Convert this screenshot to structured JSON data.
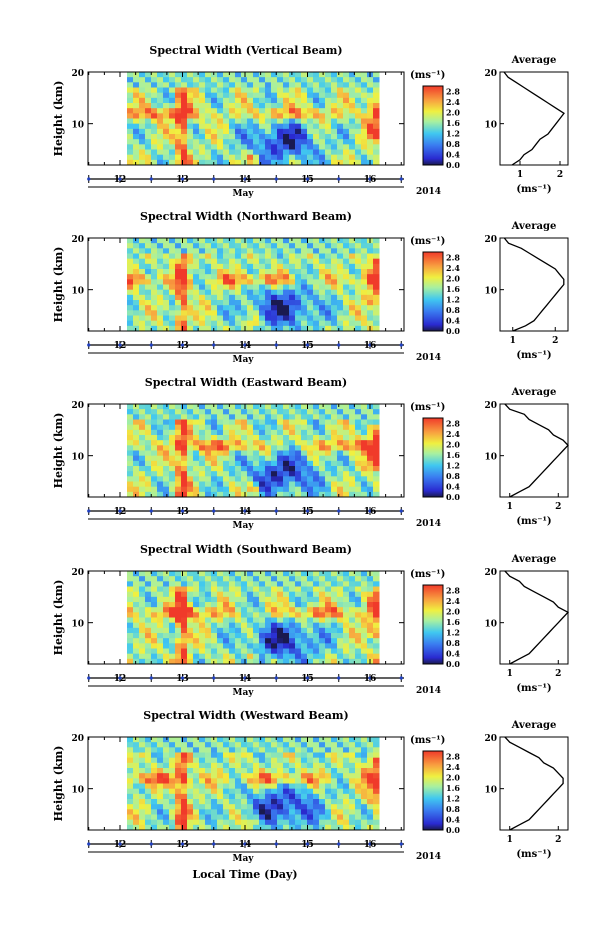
{
  "figure": {
    "xlabel": "Local Time (Day)",
    "month_label": "May",
    "year_label": "2014",
    "colorbar_unit": "(ms⁻¹)",
    "avg_title": "Average",
    "avg_xlabel": "(ms⁻¹)"
  },
  "chart_data": [
    {
      "type": "heatmap",
      "title": "Spectral Width (Vertical Beam)",
      "ylabel": "Height (km)",
      "x_ticks": [
        "12",
        "13",
        "14",
        "15",
        "16"
      ],
      "y_ticks": [
        "10",
        "20"
      ],
      "ylim": [
        2,
        20
      ],
      "colorbar_ticks": [
        "0.0",
        "0.4",
        "0.8",
        "1.2",
        "1.6",
        "2.0",
        "2.4",
        "2.8"
      ],
      "colorbar_range": [
        0,
        3.0
      ],
      "average": {
        "x_ticks": [
          "1",
          "2"
        ],
        "xlim": [
          0.5,
          2.2
        ],
        "y_ticks": [
          "10",
          "20"
        ],
        "height_km": [
          2,
          3,
          4,
          5,
          6,
          7,
          8,
          9,
          10,
          11,
          12,
          13,
          14,
          15,
          16,
          17,
          18,
          19,
          20
        ],
        "values": [
          0.8,
          1.0,
          1.1,
          1.3,
          1.4,
          1.5,
          1.7,
          1.8,
          1.9,
          2.0,
          2.1,
          1.9,
          1.7,
          1.5,
          1.3,
          1.1,
          0.9,
          0.7,
          0.6
        ]
      }
    },
    {
      "type": "heatmap",
      "title": "Spectral Width (Northward Beam)",
      "ylabel": "Height (km)",
      "x_ticks": [
        "12",
        "13",
        "14",
        "15",
        "16"
      ],
      "y_ticks": [
        "10",
        "20"
      ],
      "ylim": [
        2,
        20
      ],
      "colorbar_ticks": [
        "0.0",
        "0.4",
        "0.8",
        "1.2",
        "1.6",
        "2.0",
        "2.4",
        "2.8"
      ],
      "colorbar_range": [
        0,
        3.0
      ],
      "average": {
        "x_ticks": [
          "1",
          "2"
        ],
        "xlim": [
          0.7,
          2.3
        ],
        "y_ticks": [
          "10",
          "20"
        ],
        "height_km": [
          2,
          3,
          4,
          5,
          6,
          7,
          8,
          9,
          10,
          11,
          12,
          13,
          14,
          15,
          16,
          17,
          18,
          19,
          20
        ],
        "values": [
          1.0,
          1.3,
          1.5,
          1.6,
          1.7,
          1.8,
          1.9,
          2.0,
          2.1,
          2.2,
          2.2,
          2.1,
          2.0,
          1.8,
          1.6,
          1.4,
          1.2,
          0.9,
          0.8
        ]
      }
    },
    {
      "type": "heatmap",
      "title": "Spectral Width (Eastward Beam)",
      "ylabel": "Height (km)",
      "x_ticks": [
        "12",
        "13",
        "14",
        "15",
        "16"
      ],
      "y_ticks": [
        "10",
        "20"
      ],
      "ylim": [
        2,
        20
      ],
      "colorbar_ticks": [
        "0.0",
        "0.4",
        "0.8",
        "1.2",
        "1.6",
        "2.0",
        "2.4",
        "2.8"
      ],
      "colorbar_range": [
        0,
        3.0
      ],
      "average": {
        "x_ticks": [
          "1",
          "2"
        ],
        "xlim": [
          0.8,
          2.2
        ],
        "y_ticks": [
          "10",
          "20"
        ],
        "height_km": [
          2,
          3,
          4,
          5,
          6,
          7,
          8,
          9,
          10,
          11,
          12,
          13,
          14,
          15,
          16,
          17,
          18,
          19,
          20
        ],
        "values": [
          1.0,
          1.2,
          1.4,
          1.5,
          1.6,
          1.7,
          1.8,
          1.9,
          2.0,
          2.1,
          2.2,
          2.1,
          1.9,
          1.8,
          1.6,
          1.4,
          1.3,
          1.0,
          0.9
        ]
      }
    },
    {
      "type": "heatmap",
      "title": "Spectral Width (Southward Beam)",
      "ylabel": "Height (km)",
      "x_ticks": [
        "12",
        "13",
        "14",
        "15",
        "16"
      ],
      "y_ticks": [
        "10",
        "20"
      ],
      "ylim": [
        2,
        20
      ],
      "colorbar_ticks": [
        "0.0",
        "0.4",
        "0.8",
        "1.2",
        "1.6",
        "2.0",
        "2.4",
        "2.8"
      ],
      "colorbar_range": [
        0,
        3.0
      ],
      "average": {
        "x_ticks": [
          "1",
          "2"
        ],
        "xlim": [
          0.8,
          2.2
        ],
        "y_ticks": [
          "10",
          "20"
        ],
        "height_km": [
          2,
          3,
          4,
          5,
          6,
          7,
          8,
          9,
          10,
          11,
          12,
          13,
          14,
          15,
          16,
          17,
          18,
          19,
          20
        ],
        "values": [
          1.0,
          1.2,
          1.4,
          1.5,
          1.6,
          1.7,
          1.8,
          1.9,
          2.0,
          2.1,
          2.2,
          2.0,
          1.9,
          1.7,
          1.5,
          1.3,
          1.2,
          1.0,
          0.9
        ]
      }
    },
    {
      "type": "heatmap",
      "title": "Spectral Width (Westward Beam)",
      "ylabel": "Height (km)",
      "x_ticks": [
        "12",
        "13",
        "14",
        "15",
        "16"
      ],
      "y_ticks": [
        "10",
        "20"
      ],
      "ylim": [
        2,
        20
      ],
      "colorbar_ticks": [
        "0.0",
        "0.4",
        "0.8",
        "1.2",
        "1.6",
        "2.0",
        "2.4",
        "2.8"
      ],
      "colorbar_range": [
        0,
        3.0
      ],
      "average": {
        "x_ticks": [
          "1",
          "2"
        ],
        "xlim": [
          0.8,
          2.2
        ],
        "y_ticks": [
          "10",
          "20"
        ],
        "height_km": [
          2,
          3,
          4,
          5,
          6,
          7,
          8,
          9,
          10,
          11,
          12,
          13,
          14,
          15,
          16,
          17,
          18,
          19,
          20
        ],
        "values": [
          1.0,
          1.2,
          1.4,
          1.5,
          1.6,
          1.7,
          1.8,
          1.9,
          2.0,
          2.1,
          2.1,
          2.0,
          1.9,
          1.7,
          1.6,
          1.4,
          1.2,
          1.0,
          0.9
        ]
      }
    }
  ]
}
